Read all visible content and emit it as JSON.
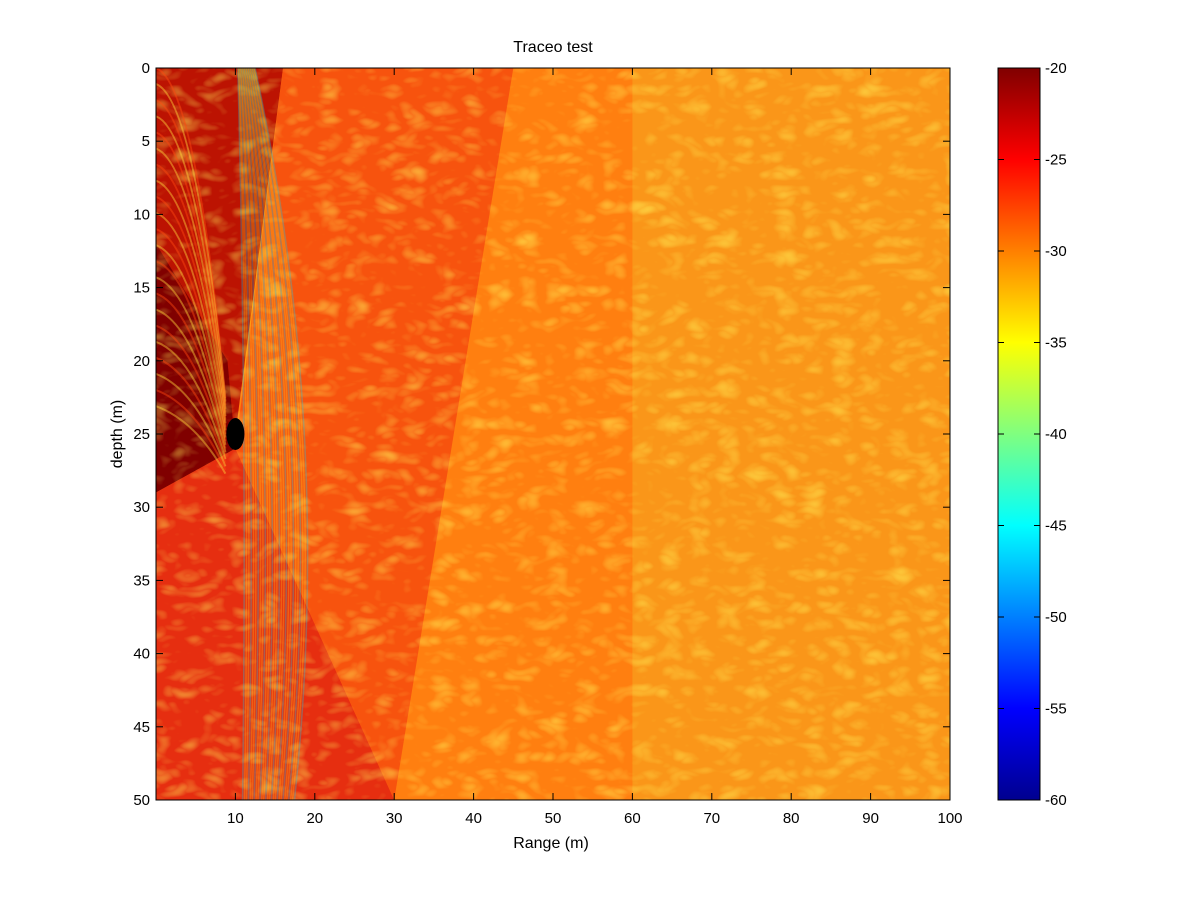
{
  "chart_data": {
    "type": "heatmap",
    "title": "Traceo test",
    "xlabel": "Range (m)",
    "ylabel": "depth (m)",
    "xlim": [
      0,
      100
    ],
    "ylim": [
      0,
      50
    ],
    "y_reversed": true,
    "x_ticks": [
      10,
      20,
      30,
      40,
      50,
      60,
      70,
      80,
      90,
      100
    ],
    "y_ticks": [
      0,
      5,
      10,
      15,
      20,
      25,
      30,
      35,
      40,
      45,
      50
    ],
    "grid": false,
    "colormap": "jet",
    "color_range": [
      -60,
      -20
    ],
    "colorbar_ticks": [
      -20,
      -25,
      -30,
      -35,
      -40,
      -45,
      -50,
      -55,
      -60
    ],
    "source_marker": {
      "range": 10,
      "depth": 25,
      "color": "#000000"
    },
    "description_of_field": "transmission loss field: saturated near source, interference fringes radiating from source and image source, noisy pattern beyond ~45 m range"
  }
}
